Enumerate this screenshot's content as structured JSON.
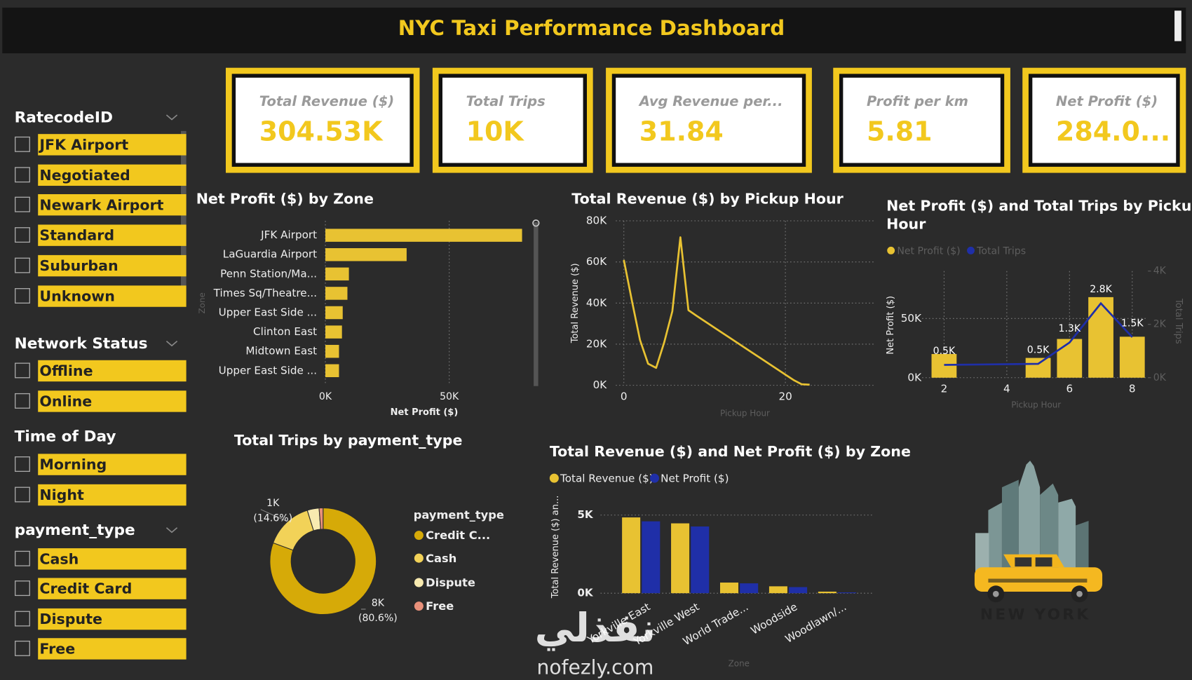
{
  "title": "NYC Taxi Performance Dashboard",
  "kpis": [
    {
      "label": "Total Revenue ($)",
      "value": "304.53K"
    },
    {
      "label": "Total Trips",
      "value": "10K"
    },
    {
      "label": "Avg Revenue per...",
      "value": "31.84"
    },
    {
      "label": "Profit per km",
      "value": "5.81"
    },
    {
      "label": "Net Profit ($)",
      "value": "284.0..."
    }
  ],
  "slicers": [
    {
      "title": "RatecodeID",
      "items": [
        "JFK Airport",
        "Negotiated",
        "Newark Airport",
        "Standard",
        "Suburban",
        "Unknown"
      ]
    },
    {
      "title": "Network Status",
      "items": [
        "Offline",
        "Online"
      ]
    },
    {
      "title": "Time of Day",
      "items": [
        "Morning",
        "Night"
      ]
    },
    {
      "title": "payment_type",
      "items": [
        "Cash",
        "Credit Card",
        "Dispute",
        "Free"
      ]
    }
  ],
  "chart_data": [
    {
      "type": "bar",
      "orientation": "horizontal",
      "title": "Net Profit ($) by Zone",
      "categories": [
        "JFK Airport",
        "LaGuardia Airport",
        "Penn Station/Ma...",
        "Times Sq/Theatre...",
        "Upper East Side ...",
        "Clinton East",
        "Midtown East",
        "Upper East Side ..."
      ],
      "values": [
        79400,
        32800,
        9500,
        8900,
        7000,
        6700,
        5500,
        5500
      ],
      "color": "#e8c232",
      "xlabel": "Net Profit ($)",
      "ylabel": "Zone",
      "xlim": [
        0,
        85000
      ],
      "xticks": [
        {
          "value": 0,
          "label": "0K"
        },
        {
          "value": 50000,
          "label": "50K"
        }
      ],
      "grid": true
    },
    {
      "type": "line",
      "title": "Total Revenue ($) by Pickup Hour",
      "x": [
        0,
        1,
        2,
        3,
        4,
        5,
        6,
        7,
        8,
        9,
        10,
        11,
        12,
        13,
        14,
        15,
        16,
        17,
        18,
        19,
        20,
        21,
        22,
        23
      ],
      "values": [
        61000,
        41000,
        22000,
        10500,
        8500,
        21000,
        36000,
        72000,
        36500,
        33800,
        31200,
        28600,
        26000,
        23400,
        20800,
        18200,
        15600,
        13000,
        10400,
        7800,
        5200,
        2600,
        500,
        300
      ],
      "color": "#e8c232",
      "xlabel": "Pickup Hour",
      "ylabel": "Total Revenue ($)",
      "xlim": [
        -1,
        31
      ],
      "xticks": [
        0,
        20
      ],
      "ylim": [
        0,
        80000
      ],
      "yticks": [
        {
          "value": 0,
          "label": "0K"
        },
        {
          "value": 20000,
          "label": "20K"
        },
        {
          "value": 40000,
          "label": "40K"
        },
        {
          "value": 60000,
          "label": "60K"
        },
        {
          "value": 80000,
          "label": "80K"
        }
      ],
      "grid": true
    },
    {
      "type": "combo",
      "title": "Net Profit ($) and Total Trips by Pickup Hour",
      "x": [
        2,
        5,
        6,
        7,
        8
      ],
      "series": [
        {
          "name": "Net Profit ($)",
          "kind": "bar",
          "color": "#e8c232",
          "values": [
            20000,
            16700,
            32700,
            68000,
            34600
          ]
        },
        {
          "name": "Total Trips",
          "kind": "line",
          "axis": "y2",
          "color": "#1f2fa8",
          "values": [
            480,
            520,
            1320,
            2790,
            1520
          ],
          "value_labels": [
            "0.5K",
            "0.5K",
            "1.3K",
            "2.8K",
            "1.5K"
          ]
        }
      ],
      "xlabel": "Pickup Hour",
      "ylabel": "Net Profit ($)",
      "y2label": "Total Trips",
      "xlim": [
        1.3,
        8.5
      ],
      "xticks": [
        2,
        4,
        6,
        8
      ],
      "ylim": [
        0,
        90000
      ],
      "yticks": [
        {
          "value": 0,
          "label": "0K"
        },
        {
          "value": 50000,
          "label": "50K"
        }
      ],
      "y2lim": [
        0,
        4000
      ],
      "y2ticks": [
        {
          "value": 0,
          "label": "0K"
        },
        {
          "value": 2000,
          "label": "2K"
        },
        {
          "value": 4000,
          "label": "4K"
        }
      ],
      "grid": true
    },
    {
      "type": "donut",
      "title": "Total Trips by payment_type",
      "legend_title": "payment_type",
      "categories": [
        "Credit C...",
        "Cash",
        "Dispute",
        "Free"
      ],
      "values": [
        8060,
        1460,
        360,
        120
      ],
      "value_labels": [
        "8K (80.6%)",
        "1K (14.6%)",
        null,
        null
      ],
      "colors": [
        "#d6aa08",
        "#f2d258",
        "#f8eab0",
        "#e8907a"
      ]
    },
    {
      "type": "bar",
      "orientation": "vertical",
      "title": "Total Revenue ($) and Net Profit ($) by Zone",
      "categories": [
        "Yorkville East",
        "Yorkville West",
        "World Trade...",
        "Woodside",
        "Woodlawn/..."
      ],
      "series": [
        {
          "name": "Total Revenue ($)",
          "color": "#e8c232",
          "values": [
            4850,
            4470,
            680,
            440,
            100
          ]
        },
        {
          "name": "Net Profit ($)",
          "color": "#1f2fa8",
          "values": [
            4600,
            4270,
            630,
            390,
            50
          ]
        }
      ],
      "xlabel": "Zone",
      "ylabel": "Total Revenue ($) an...",
      "ylim": [
        0,
        5800
      ],
      "yticks": [
        {
          "value": 0,
          "label": "0K"
        },
        {
          "value": 5000,
          "label": "5K"
        }
      ],
      "grid": true
    }
  ],
  "illustration_text": "NEW YORK",
  "watermark": {
    "logo": "نفذلي",
    "url": "nofezly.com"
  }
}
